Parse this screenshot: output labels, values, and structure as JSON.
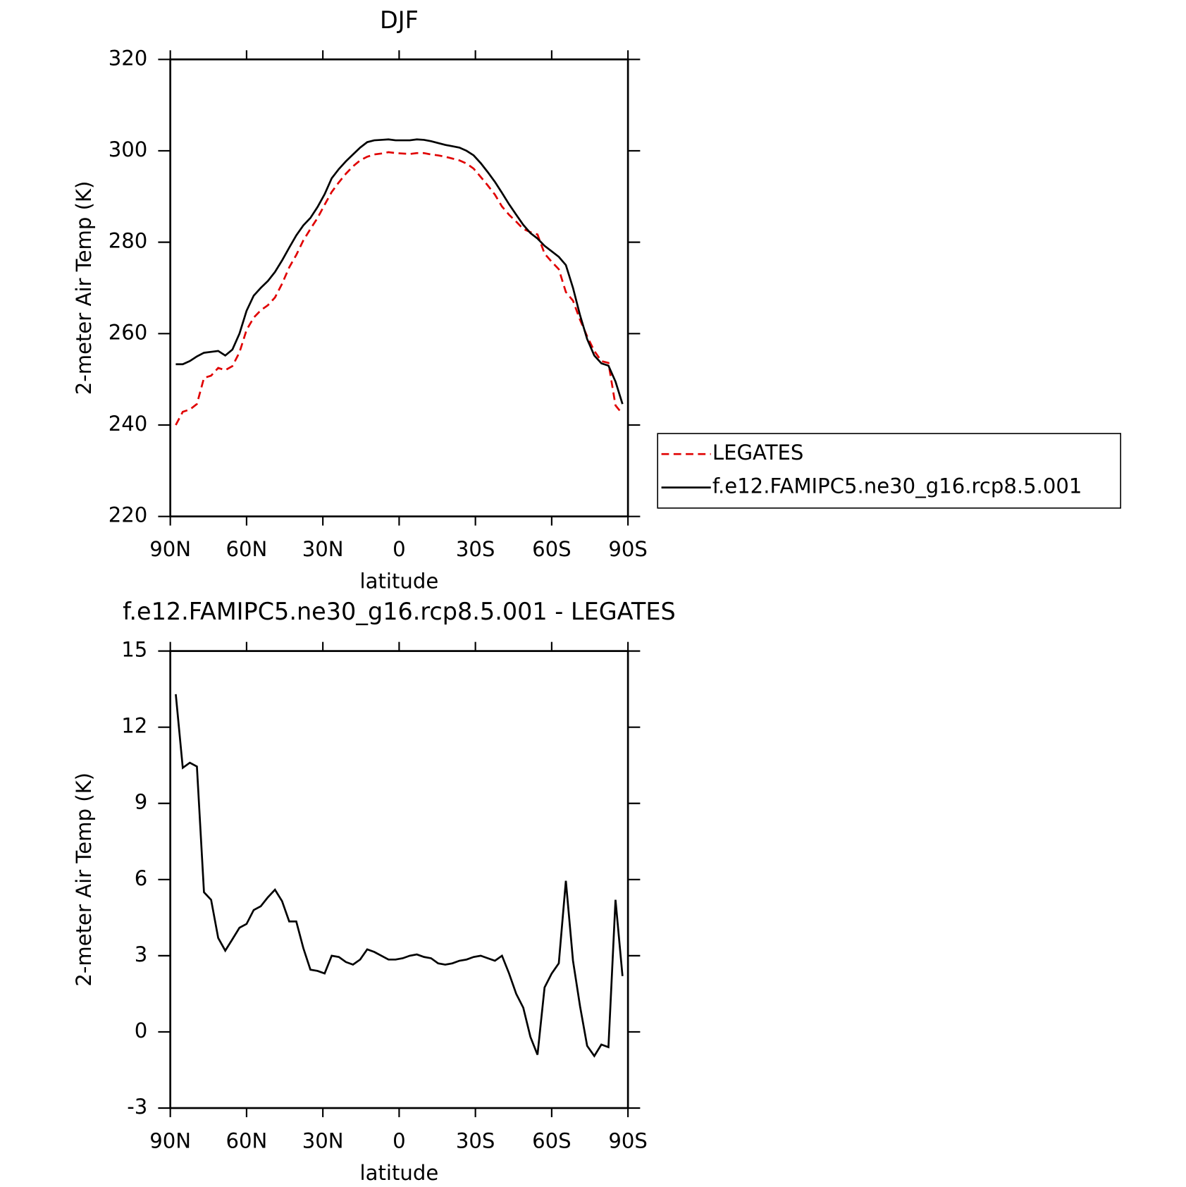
{
  "chart_data": [
    {
      "type": "line",
      "title": "DJF",
      "x_label": "latitude",
      "y_label": "2-meter Air Temp (K)",
      "x": [
        87.86,
        85.1,
        82.31,
        79.53,
        76.74,
        73.95,
        71.16,
        68.37,
        65.58,
        62.79,
        60.0,
        57.21,
        54.42,
        51.63,
        48.84,
        46.05,
        43.25,
        40.46,
        37.67,
        34.88,
        32.09,
        29.3,
        26.51,
        23.72,
        20.93,
        18.14,
        15.35,
        12.56,
        9.77,
        6.98,
        4.19,
        1.4,
        -1.4,
        -4.19,
        -6.98,
        -9.77,
        -12.56,
        -15.35,
        -18.14,
        -20.93,
        -23.72,
        -26.51,
        -29.3,
        -32.09,
        -34.88,
        -37.67,
        -40.46,
        -43.25,
        -46.05,
        -48.84,
        -51.63,
        -54.42,
        -57.21,
        -60.0,
        -62.79,
        -65.58,
        -68.37,
        -71.16,
        -73.95,
        -76.74,
        -79.53,
        -82.31,
        -85.1,
        -87.86
      ],
      "series": [
        {
          "name": "LEGATES",
          "color": "#e00000",
          "style": "dashed",
          "values": [
            240.0,
            242.9,
            243.4,
            244.6,
            250.3,
            250.8,
            252.5,
            252.0,
            252.9,
            255.9,
            260.8,
            263.5,
            265.1,
            266.2,
            267.9,
            270.9,
            274.5,
            277.2,
            280.4,
            282.9,
            285.3,
            288.2,
            291.0,
            293.1,
            295.0,
            296.6,
            297.9,
            298.7,
            299.2,
            299.4,
            299.7,
            299.5,
            299.4,
            299.3,
            299.5,
            299.5,
            299.2,
            299.0,
            298.7,
            298.3,
            297.9,
            297.2,
            296.1,
            294.3,
            292.4,
            290.4,
            287.8,
            286.0,
            284.5,
            282.9,
            282.2,
            281.7,
            277.5,
            275.7,
            274.1,
            269.1,
            267.2,
            263.0,
            259.4,
            256.2,
            254.0,
            253.6,
            244.3,
            242.4
          ]
        },
        {
          "name": "f.e12.FAMIPC5.ne30_g16.rcp8.5.001",
          "color": "#000000",
          "style": "solid",
          "values": [
            253.3,
            253.3,
            254,
            255,
            255.8,
            256,
            256.2,
            255.2,
            256.5,
            260,
            265,
            268.3,
            270,
            271.5,
            273.5,
            276,
            278.8,
            281.5,
            283.7,
            285.3,
            287.7,
            290.5,
            294,
            296,
            297.7,
            299.2,
            300.7,
            301.9,
            302.3,
            302.4,
            302.5,
            302.3,
            302.3,
            302.3,
            302.5,
            302.4,
            302.1,
            301.7,
            301.3,
            301.0,
            300.7,
            300,
            299,
            297.3,
            295.3,
            293.2,
            290.8,
            288.3,
            286,
            283.8,
            282,
            280.8,
            279.2,
            278,
            276.8,
            275,
            270,
            264,
            258.8,
            255.2,
            253.5,
            253,
            249.5,
            244.6
          ]
        }
      ],
      "xlim": [
        90,
        -90
      ],
      "xticks": [
        {
          "value": 90,
          "label": "90N"
        },
        {
          "value": 60,
          "label": "60N"
        },
        {
          "value": 30,
          "label": "30N"
        },
        0,
        {
          "value": -30,
          "label": "30S"
        },
        {
          "value": -60,
          "label": "60S"
        },
        {
          "value": -90,
          "label": "90S"
        }
      ],
      "ylim": [
        220,
        320
      ],
      "yticks": [
        220,
        240,
        260,
        280,
        300,
        320
      ],
      "legend": "right"
    },
    {
      "type": "line",
      "title": "f.e12.FAMIPC5.ne30_g16.rcp8.5.001 - LEGATES",
      "x_label": "latitude",
      "y_label": "2-meter Air Temp (K)",
      "x": [
        87.86,
        85.1,
        82.31,
        79.53,
        76.74,
        73.95,
        71.16,
        68.37,
        65.58,
        62.79,
        60.0,
        57.21,
        54.42,
        51.63,
        48.84,
        46.05,
        43.25,
        40.46,
        37.67,
        34.88,
        32.09,
        29.3,
        26.51,
        23.72,
        20.93,
        18.14,
        15.35,
        12.56,
        9.77,
        6.98,
        4.19,
        1.4,
        -1.4,
        -4.19,
        -6.98,
        -9.77,
        -12.56,
        -15.35,
        -18.14,
        -20.93,
        -23.72,
        -26.51,
        -29.3,
        -32.09,
        -34.88,
        -37.67,
        -40.46,
        -43.25,
        -46.05,
        -48.84,
        -51.63,
        -54.42,
        -57.21,
        -60.0,
        -62.79,
        -65.58,
        -68.37,
        -71.16,
        -73.95,
        -76.74,
        -79.53,
        -82.31,
        -85.1,
        -87.86
      ],
      "values": [
        13.3,
        10.4,
        10.6,
        10.45,
        5.5,
        5.2,
        3.7,
        3.2,
        3.65,
        4.1,
        4.25,
        4.8,
        4.95,
        5.3,
        5.6,
        5.15,
        4.35,
        4.35,
        3.3,
        2.45,
        2.4,
        2.3,
        3.0,
        2.95,
        2.75,
        2.65,
        2.85,
        3.25,
        3.15,
        3.0,
        2.85,
        2.85,
        2.9,
        3.0,
        3.05,
        2.95,
        2.9,
        2.7,
        2.65,
        2.7,
        2.8,
        2.85,
        2.95,
        3.0,
        2.9,
        2.8,
        3.0,
        2.3,
        1.5,
        0.95,
        -0.2,
        -0.9,
        1.75,
        2.3,
        2.7,
        5.95,
        2.8,
        1.0,
        -0.55,
        -0.95,
        -0.5,
        -0.6,
        5.2,
        2.2
      ],
      "color": "#000000",
      "xlim": [
        90,
        -90
      ],
      "xticks": [
        {
          "value": 90,
          "label": "90N"
        },
        {
          "value": 60,
          "label": "60N"
        },
        {
          "value": 30,
          "label": "30N"
        },
        0,
        {
          "value": -30,
          "label": "30S"
        },
        {
          "value": -60,
          "label": "60S"
        },
        {
          "value": -90,
          "label": "90S"
        }
      ],
      "ylim": [
        -3,
        15
      ],
      "yticks": [
        -3,
        0,
        3,
        6,
        9,
        12,
        15
      ]
    }
  ]
}
